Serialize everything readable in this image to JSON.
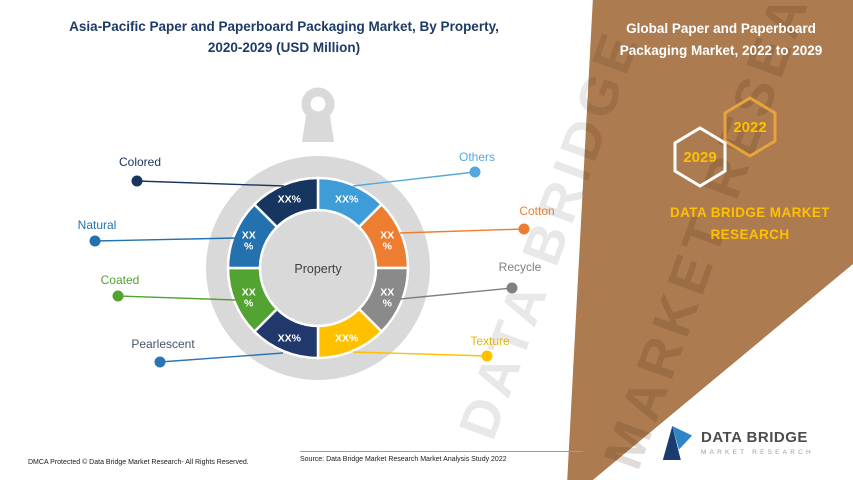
{
  "header": {
    "title_lines": [
      "Asia-Pacific Paper and Paperboard Packaging Market, By Property,",
      "2020-2029 (USD Million)"
    ],
    "title_color": "#1E3A66"
  },
  "right_panel": {
    "band_color": "#AC7B4F",
    "title_lines": [
      "Global Paper and Paperboard",
      "Packaging Market, 2022 to 2029"
    ],
    "hexagons": [
      {
        "year": "2029",
        "outline": "#FFFFFF",
        "text_color": "#FFC000"
      },
      {
        "year": "2022",
        "outline": "#E8A33D",
        "text_color": "#FFC000"
      }
    ],
    "brand_lines": [
      "DATA BRIDGE MARKET",
      "RESEARCH"
    ],
    "brand_color": "#FFC000"
  },
  "chart_data": {
    "type": "pie",
    "title": "Asia-Pacific Paper and Paperboard Packaging Market, By Property, 2020-2029 (USD Million)",
    "center_label": "Property",
    "start_angle_deg": 0,
    "direction": "clockwise",
    "segments": [
      {
        "label": "Others",
        "value_label": "XX%",
        "pct": 12.5,
        "color": "#3E9CD8",
        "stacked": false
      },
      {
        "label": "Cotton",
        "value_label": "XX %",
        "pct": 12.5,
        "color": "#ED7D31",
        "stacked": true
      },
      {
        "label": "Recycle",
        "value_label": "XX %",
        "pct": 12.5,
        "color": "#8A8A8A",
        "stacked": true
      },
      {
        "label": "Texture",
        "value_label": "XX%",
        "pct": 12.5,
        "color": "#FFC000",
        "stacked": false
      },
      {
        "label": "Pearlescent",
        "value_label": "XX%",
        "pct": 12.5,
        "color": "#20386B",
        "stacked": false
      },
      {
        "label": "Coated",
        "value_label": "XX %",
        "pct": 12.5,
        "color": "#52A331",
        "stacked": true
      },
      {
        "label": "Natural",
        "value_label": "XX %",
        "pct": 12.5,
        "color": "#2371AE",
        "stacked": true
      },
      {
        "label": "Colored",
        "value_label": "XX%",
        "pct": 12.5,
        "color": "#16365F",
        "stacked": false
      }
    ],
    "callouts": [
      {
        "label": "Colored",
        "text_color": "#16365F",
        "dot_color": "#16365F"
      },
      {
        "label": "Natural",
        "text_color": "#2371AE",
        "dot_color": "#2371AE"
      },
      {
        "label": "Coated",
        "text_color": "#52A331",
        "dot_color": "#52A331"
      },
      {
        "label": "Pearlescent",
        "text_color": "#44546A",
        "dot_color": "#2E75B6"
      },
      {
        "label": "Others",
        "text_color": "#56A7DE",
        "dot_color": "#56A7DE"
      },
      {
        "label": "Cotton",
        "text_color": "#ED7D31",
        "dot_color": "#ED7D31"
      },
      {
        "label": "Recycle",
        "text_color": "#808080",
        "dot_color": "#808080"
      },
      {
        "label": "Texture",
        "text_color": "#E8B40A",
        "dot_color": "#FFC000"
      }
    ]
  },
  "watermark": {
    "lines": [
      "DATA BRIDGE",
      "MARKET RESEARCH"
    ]
  },
  "logo": {
    "name": "DATA BRIDGE",
    "subtitle": "MARKET RESEARCH"
  },
  "footer": {
    "dmca": "DMCA Protected © Data Bridge Market Research- All Rights Reserved.",
    "source": "Source: Data Bridge Market Research Market Analysis Study 2022"
  }
}
